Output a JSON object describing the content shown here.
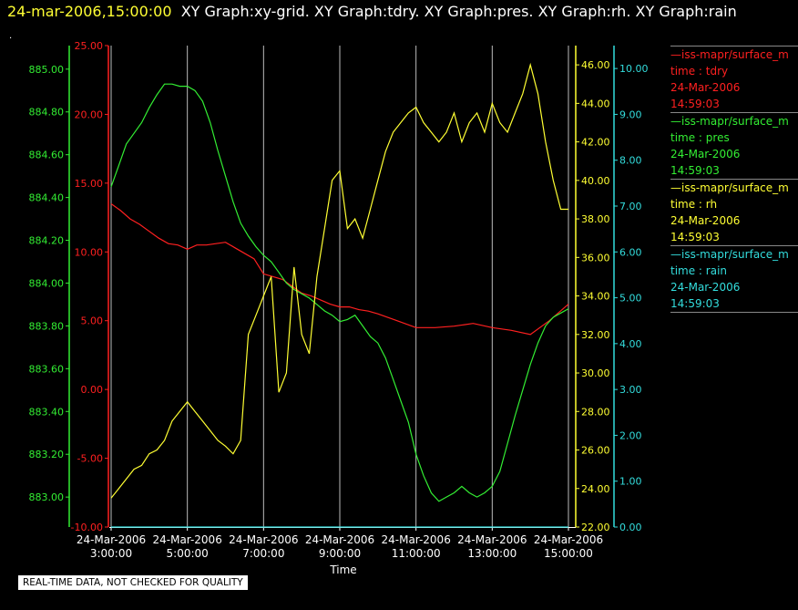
{
  "header": {
    "timestamp": "24-mar-2006,15:00:00",
    "graphs": "XY Graph:xy-grid.  XY Graph:tdry.  XY Graph:pres.  XY Graph:rh.  XY Graph:rain",
    "dot": "."
  },
  "quality_note": "REAL-TIME DATA, NOT CHECKED FOR QUALITY",
  "colors": {
    "tdry": "#ff2020",
    "pres": "#33ee33",
    "rh": "#ffff33",
    "rain": "#33dddd",
    "grid": "#bbbbbb"
  },
  "legend": [
    {
      "label": "—iss-mapr/surface_m",
      "field": "time : tdry",
      "date": "24-Mar-2006",
      "time": "14:59:03",
      "color": "#ff2020"
    },
    {
      "label": "—iss-mapr/surface_m",
      "field": "time : pres",
      "date": "24-Mar-2006",
      "time": "14:59:03",
      "color": "#33ee33"
    },
    {
      "label": "—iss-mapr/surface_m",
      "field": "time : rh",
      "date": "24-Mar-2006",
      "time": "14:59:03",
      "color": "#ffff33"
    },
    {
      "label": "—iss-mapr/surface_m",
      "field": "time : rain",
      "date": "24-Mar-2006",
      "time": "14:59:03",
      "color": "#33dddd"
    }
  ],
  "chart_data": {
    "type": "line",
    "xlabel": "Time",
    "x_ticks": [
      {
        "date": "24-Mar-2006",
        "time": "3:00:00",
        "hour": 3
      },
      {
        "date": "24-Mar-2006",
        "time": "5:00:00",
        "hour": 5
      },
      {
        "date": "24-Mar-2006",
        "time": "7:00:00",
        "hour": 7
      },
      {
        "date": "24-Mar-2006",
        "time": "9:00:00",
        "hour": 9
      },
      {
        "date": "24-Mar-2006",
        "time": "11:00:00",
        "hour": 11
      },
      {
        "date": "24-Mar-2006",
        "time": "13:00:00",
        "hour": 13
      },
      {
        "date": "24-Mar-2006",
        "time": "15:00:00",
        "hour": 15
      }
    ],
    "xlim": [
      3,
      15
    ],
    "grid": "vertical",
    "axes": {
      "pres": {
        "range": [
          882.86,
          885.11
        ],
        "ticks": [
          "883.00",
          "883.20",
          "883.40",
          "883.60",
          "883.80",
          "884.00",
          "884.20",
          "884.40",
          "884.60",
          "884.80",
          "885.00"
        ]
      },
      "tdry": {
        "range": [
          -10,
          25
        ],
        "ticks": [
          "-10.00",
          "-5.00",
          "0.00",
          "5.00",
          "10.00",
          "15.00",
          "20.00",
          "25.00"
        ]
      },
      "rh": {
        "range": [
          22.0,
          47.0
        ],
        "ticks": [
          "22.00",
          "24.00",
          "26.00",
          "28.00",
          "30.00",
          "32.00",
          "34.00",
          "36.00",
          "38.00",
          "40.00",
          "42.00",
          "44.00",
          "46.00"
        ]
      },
      "rain": {
        "range": [
          0,
          10.5
        ],
        "ticks": [
          "0.00",
          "1.00",
          "2.00",
          "3.00",
          "4.00",
          "5.00",
          "6.00",
          "7.00",
          "8.00",
          "9.00",
          "10.00"
        ]
      }
    },
    "series": [
      {
        "key": "tdry",
        "x": [
          3.0,
          3.25,
          3.5,
          3.75,
          4.0,
          4.25,
          4.5,
          4.75,
          5.0,
          5.25,
          5.5,
          5.75,
          6.0,
          6.25,
          6.5,
          6.75,
          7.0,
          7.25,
          7.5,
          7.75,
          8.0,
          8.25,
          8.5,
          8.75,
          9.0,
          9.25,
          9.5,
          9.75,
          10.0,
          10.5,
          11.0,
          11.5,
          12.0,
          12.5,
          13.0,
          13.5,
          14.0,
          14.5,
          15.0
        ],
        "y": [
          13.5,
          13.0,
          12.4,
          12.0,
          11.5,
          11.0,
          10.6,
          10.5,
          10.2,
          10.5,
          10.5,
          10.6,
          10.7,
          10.3,
          9.9,
          9.5,
          8.4,
          8.2,
          8.0,
          7.5,
          7.0,
          6.8,
          6.5,
          6.2,
          6.0,
          6.0,
          5.8,
          5.7,
          5.5,
          5.0,
          4.5,
          4.5,
          4.6,
          4.8,
          4.5,
          4.3,
          4.0,
          5.0,
          6.2
        ]
      },
      {
        "key": "pres",
        "x": [
          3.0,
          3.2,
          3.4,
          3.6,
          3.8,
          4.0,
          4.2,
          4.4,
          4.6,
          4.8,
          5.0,
          5.2,
          5.4,
          5.6,
          5.8,
          6.0,
          6.2,
          6.4,
          6.6,
          6.8,
          7.0,
          7.2,
          7.4,
          7.6,
          7.8,
          8.0,
          8.2,
          8.4,
          8.6,
          8.8,
          9.0,
          9.2,
          9.4,
          9.6,
          9.8,
          10.0,
          10.2,
          10.4,
          10.6,
          10.8,
          11.0,
          11.2,
          11.4,
          11.6,
          11.8,
          12.0,
          12.2,
          12.4,
          12.6,
          12.8,
          13.0,
          13.2,
          13.4,
          13.6,
          13.8,
          14.0,
          14.2,
          14.4,
          14.6,
          14.8,
          15.0
        ],
        "y": [
          884.45,
          884.55,
          884.65,
          884.7,
          884.75,
          884.82,
          884.88,
          884.93,
          884.93,
          884.92,
          884.92,
          884.9,
          884.85,
          884.75,
          884.62,
          884.5,
          884.38,
          884.28,
          884.22,
          884.17,
          884.13,
          884.1,
          884.05,
          884.0,
          883.97,
          883.95,
          883.93,
          883.9,
          883.87,
          883.85,
          883.82,
          883.83,
          883.85,
          883.8,
          883.75,
          883.72,
          883.65,
          883.55,
          883.45,
          883.35,
          883.2,
          883.1,
          883.02,
          882.98,
          883.0,
          883.02,
          883.05,
          883.02,
          883.0,
          883.02,
          883.05,
          883.12,
          883.25,
          883.38,
          883.5,
          883.62,
          883.72,
          883.8,
          883.84,
          883.86,
          883.88
        ]
      },
      {
        "key": "rh",
        "x": [
          3.0,
          3.2,
          3.4,
          3.6,
          3.8,
          4.0,
          4.2,
          4.4,
          4.6,
          4.8,
          5.0,
          5.2,
          5.4,
          5.6,
          5.8,
          6.0,
          6.2,
          6.4,
          6.6,
          6.8,
          7.0,
          7.2,
          7.4,
          7.6,
          7.8,
          8.0,
          8.2,
          8.4,
          8.6,
          8.8,
          9.0,
          9.2,
          9.4,
          9.6,
          9.8,
          10.0,
          10.2,
          10.4,
          10.6,
          10.8,
          11.0,
          11.2,
          11.4,
          11.6,
          11.8,
          12.0,
          12.2,
          12.4,
          12.6,
          12.8,
          13.0,
          13.2,
          13.4,
          13.6,
          13.8,
          14.0,
          14.2,
          14.4,
          14.6,
          14.8,
          15.0
        ],
        "y": [
          23.5,
          24.0,
          24.5,
          25.0,
          25.2,
          25.8,
          26.0,
          26.5,
          27.5,
          28.0,
          28.5,
          28.0,
          27.5,
          27.0,
          26.5,
          26.2,
          25.8,
          26.5,
          32.0,
          33.0,
          34.0,
          35.0,
          29.0,
          30.0,
          35.5,
          32.0,
          31.0,
          35.0,
          37.5,
          40.0,
          40.5,
          37.5,
          38.0,
          37.0,
          38.5,
          40.0,
          41.5,
          42.5,
          43.0,
          43.5,
          43.8,
          43.0,
          42.5,
          42.0,
          42.5,
          43.5,
          42.0,
          43.0,
          43.5,
          42.5,
          44.0,
          43.0,
          42.5,
          43.5,
          44.5,
          46.0,
          44.5,
          42.0,
          40.0,
          38.5,
          38.5
        ]
      },
      {
        "key": "rain",
        "x": [
          3.0,
          15.0
        ],
        "y": [
          0.0,
          0.0
        ]
      }
    ]
  }
}
